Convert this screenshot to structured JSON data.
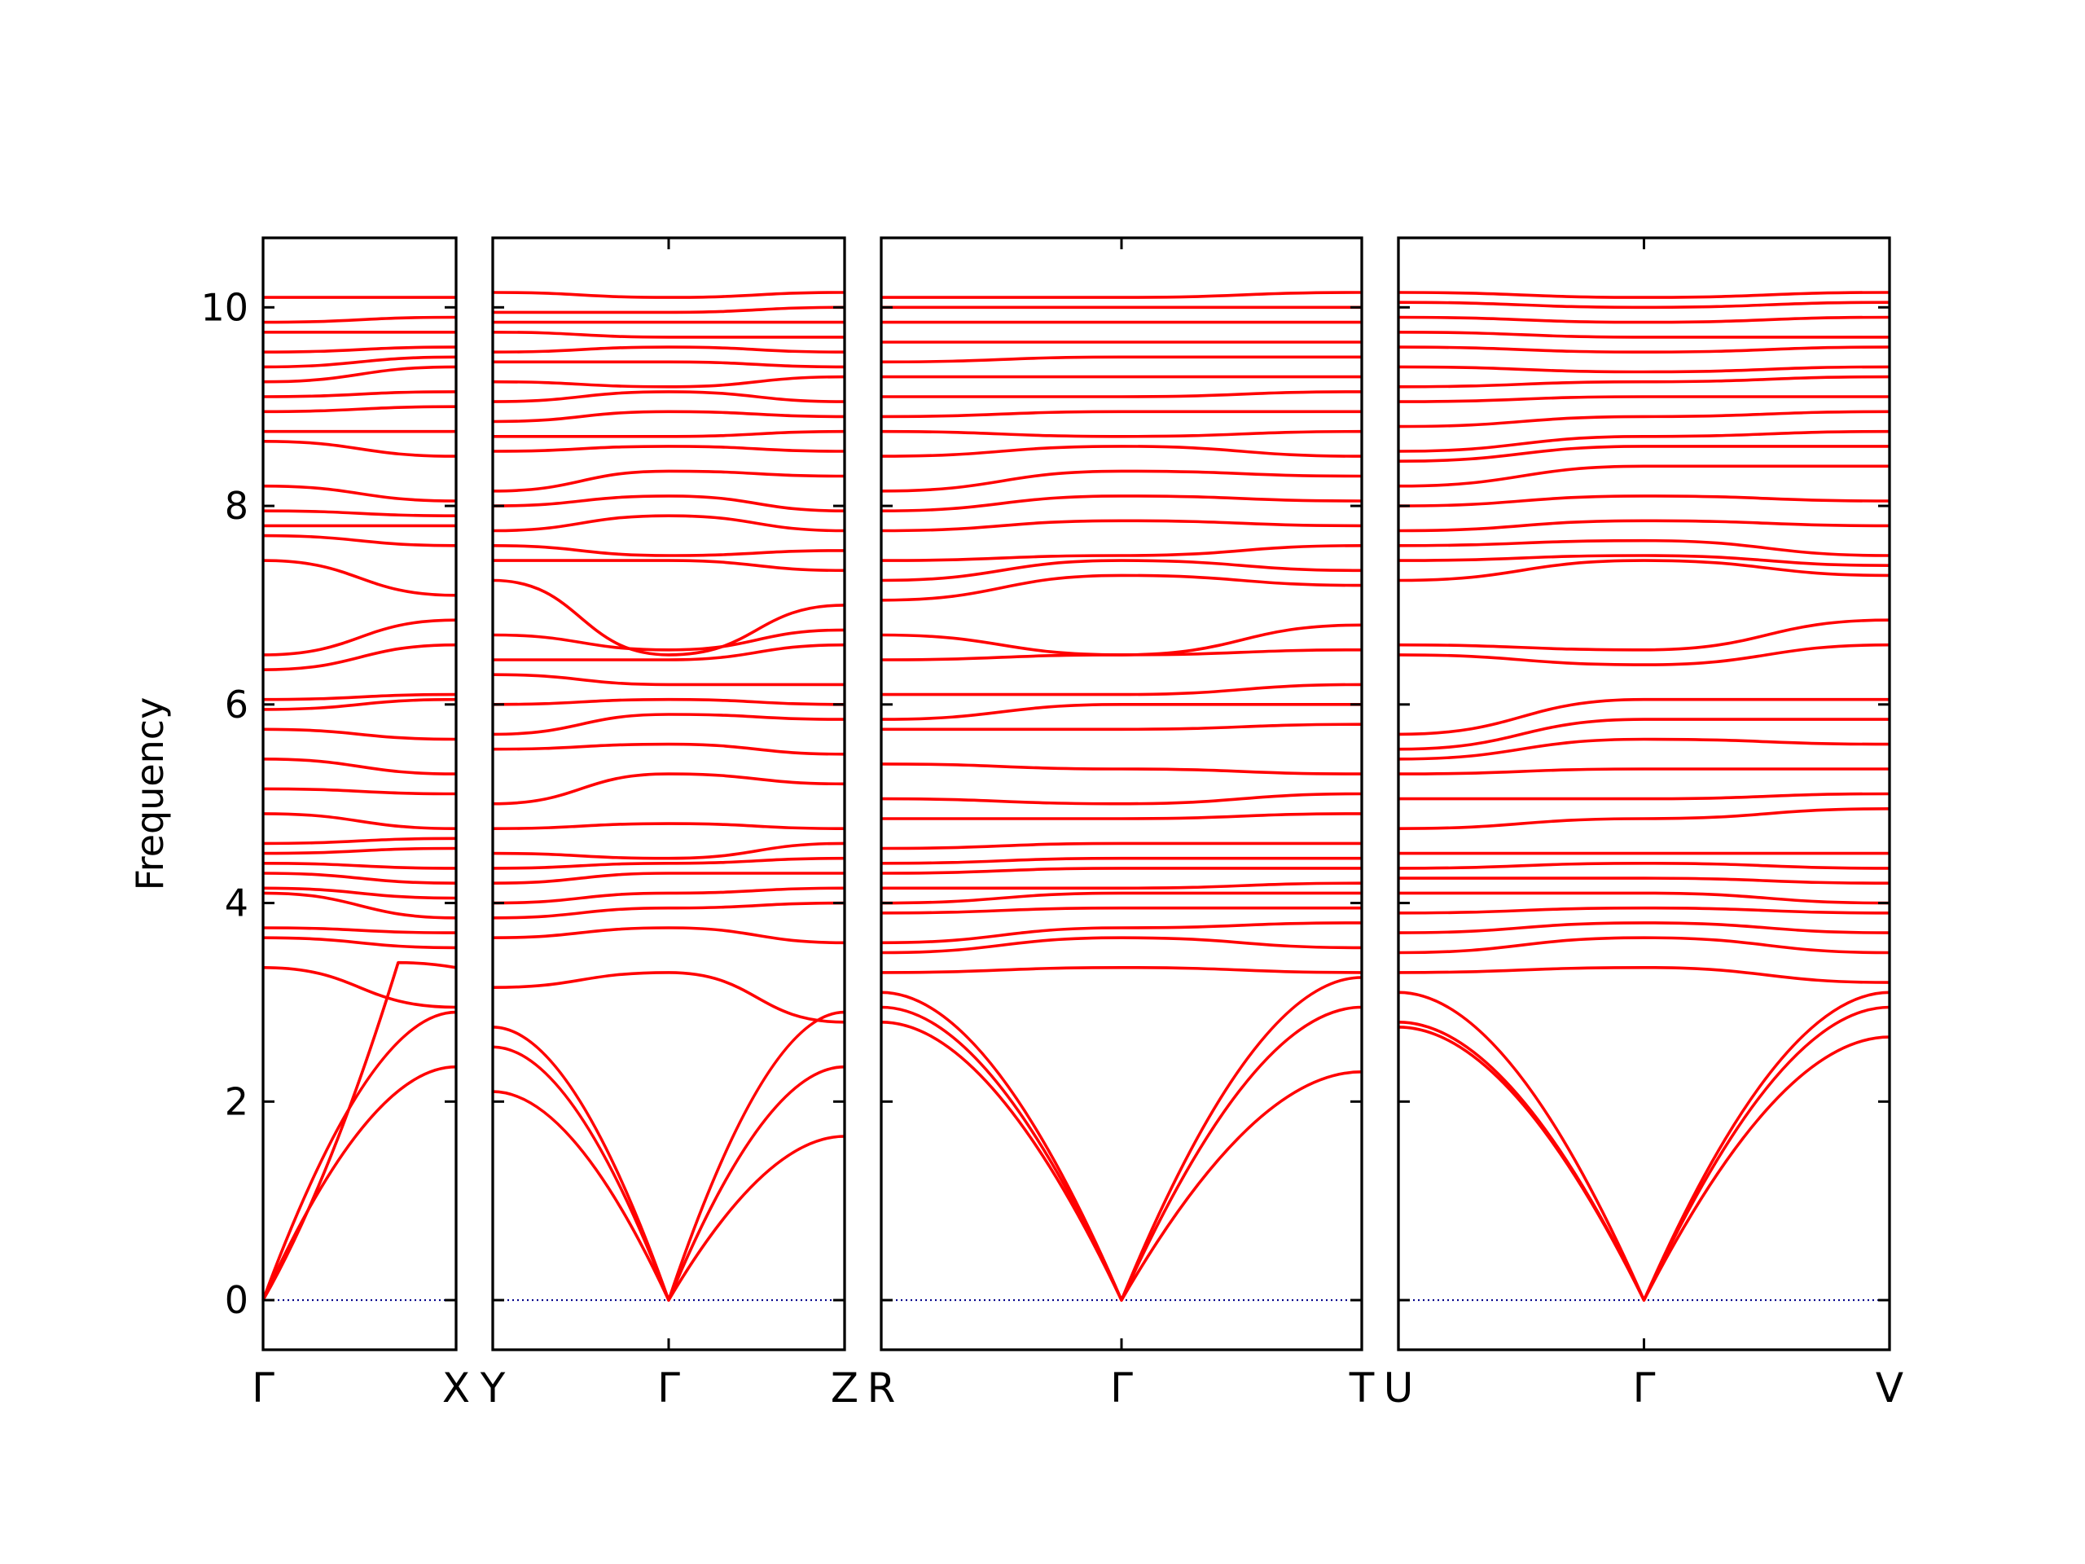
{
  "chart_data": {
    "type": "line",
    "title": "",
    "ylabel": "Frequency",
    "ylim": [
      -0.5,
      10.7
    ],
    "yticks": [
      "0",
      "2",
      "4",
      "6",
      "8",
      "10"
    ],
    "grid": false,
    "band_color": "#ff0000",
    "zero_line_color": "#00008b",
    "panels": [
      {
        "labels": [
          "Γ",
          "X"
        ],
        "x": [
          0,
          1
        ],
        "series": [
          {
            "values": [
              0.0,
              2.35
            ]
          },
          {
            "values": [
              0.0,
              2.9
            ]
          },
          {
            "values": [
              0.0,
              3.35
            ],
            "peak": [
              0.7,
              3.4
            ]
          },
          {
            "values": [
              3.35,
              2.95
            ]
          },
          {
            "values": [
              3.65,
              3.55
            ]
          },
          {
            "values": [
              3.75,
              3.7
            ]
          },
          {
            "values": [
              4.1,
              3.85
            ]
          },
          {
            "values": [
              4.15,
              4.05
            ]
          },
          {
            "values": [
              4.3,
              4.2
            ]
          },
          {
            "values": [
              4.4,
              4.35
            ]
          },
          {
            "values": [
              4.5,
              4.55
            ]
          },
          {
            "values": [
              4.6,
              4.65
            ]
          },
          {
            "values": [
              4.9,
              4.75
            ]
          },
          {
            "values": [
              5.15,
              5.1
            ]
          },
          {
            "values": [
              5.45,
              5.3
            ]
          },
          {
            "values": [
              5.75,
              5.65
            ]
          },
          {
            "values": [
              5.95,
              6.05
            ]
          },
          {
            "values": [
              6.05,
              6.1
            ]
          },
          {
            "values": [
              6.35,
              6.6
            ]
          },
          {
            "values": [
              6.5,
              6.85
            ]
          },
          {
            "values": [
              7.45,
              7.1
            ]
          },
          {
            "values": [
              7.7,
              7.6
            ]
          },
          {
            "values": [
              7.8,
              7.8
            ]
          },
          {
            "values": [
              7.95,
              7.9
            ]
          },
          {
            "values": [
              8.2,
              8.05
            ]
          },
          {
            "values": [
              8.65,
              8.5
            ]
          },
          {
            "values": [
              8.75,
              8.75
            ]
          },
          {
            "values": [
              8.95,
              9.0
            ]
          },
          {
            "values": [
              9.1,
              9.15
            ]
          },
          {
            "values": [
              9.25,
              9.4
            ]
          },
          {
            "values": [
              9.4,
              9.5
            ]
          },
          {
            "values": [
              9.55,
              9.6
            ]
          },
          {
            "values": [
              9.75,
              9.75
            ]
          },
          {
            "values": [
              9.85,
              9.9
            ]
          },
          {
            "values": [
              10.1,
              10.1
            ]
          }
        ]
      },
      {
        "labels": [
          "Y",
          "Γ",
          "Z"
        ],
        "x": [
          0,
          1,
          2
        ],
        "series": [
          {
            "values": [
              2.1,
              0.0,
              1.65
            ]
          },
          {
            "values": [
              2.55,
              0.0,
              2.35
            ]
          },
          {
            "values": [
              2.75,
              0.0,
              2.9
            ]
          },
          {
            "values": [
              3.15,
              3.3,
              2.8
            ]
          },
          {
            "values": [
              3.65,
              3.75,
              3.6
            ]
          },
          {
            "values": [
              3.85,
              3.95,
              4.0
            ]
          },
          {
            "values": [
              4.0,
              4.1,
              4.15
            ]
          },
          {
            "values": [
              4.2,
              4.3,
              4.3
            ]
          },
          {
            "values": [
              4.35,
              4.4,
              4.45
            ]
          },
          {
            "values": [
              4.5,
              4.45,
              4.6
            ]
          },
          {
            "values": [
              4.75,
              4.8,
              4.75
            ]
          },
          {
            "values": [
              5.0,
              5.3,
              5.2
            ]
          },
          {
            "values": [
              5.55,
              5.6,
              5.5
            ]
          },
          {
            "values": [
              5.7,
              5.9,
              5.85
            ]
          },
          {
            "values": [
              6.0,
              6.05,
              6.0
            ]
          },
          {
            "values": [
              6.3,
              6.2,
              6.2
            ]
          },
          {
            "values": [
              6.45,
              6.45,
              6.6
            ]
          },
          {
            "values": [
              6.7,
              6.55,
              6.75
            ]
          },
          {
            "values": [
              7.25,
              6.5,
              7.0
            ]
          },
          {
            "values": [
              7.45,
              7.45,
              7.35
            ]
          },
          {
            "values": [
              7.6,
              7.5,
              7.55
            ]
          },
          {
            "values": [
              7.75,
              7.9,
              7.75
            ]
          },
          {
            "values": [
              8.0,
              8.1,
              7.95
            ]
          },
          {
            "values": [
              8.15,
              8.35,
              8.3
            ]
          },
          {
            "values": [
              8.55,
              8.6,
              8.55
            ]
          },
          {
            "values": [
              8.7,
              8.7,
              8.75
            ]
          },
          {
            "values": [
              8.85,
              8.95,
              8.9
            ]
          },
          {
            "values": [
              9.05,
              9.15,
              9.05
            ]
          },
          {
            "values": [
              9.25,
              9.2,
              9.3
            ]
          },
          {
            "values": [
              9.45,
              9.45,
              9.4
            ]
          },
          {
            "values": [
              9.55,
              9.6,
              9.55
            ]
          },
          {
            "values": [
              9.75,
              9.7,
              9.7
            ]
          },
          {
            "values": [
              9.85,
              9.85,
              9.85
            ]
          },
          {
            "values": [
              9.95,
              9.95,
              10.0
            ]
          },
          {
            "values": [
              10.15,
              10.1,
              10.15
            ]
          }
        ]
      },
      {
        "labels": [
          "R",
          "Γ",
          "T"
        ],
        "x": [
          0,
          1,
          2
        ],
        "series": [
          {
            "values": [
              2.8,
              0.0,
              2.3
            ]
          },
          {
            "values": [
              2.95,
              0.0,
              2.95
            ]
          },
          {
            "values": [
              3.1,
              0.0,
              3.25
            ]
          },
          {
            "values": [
              3.3,
              3.35,
              3.3
            ]
          },
          {
            "values": [
              3.5,
              3.65,
              3.55
            ]
          },
          {
            "values": [
              3.6,
              3.75,
              3.8
            ]
          },
          {
            "values": [
              3.9,
              3.95,
              3.95
            ]
          },
          {
            "values": [
              4.0,
              4.1,
              4.1
            ]
          },
          {
            "values": [
              4.15,
              4.15,
              4.2
            ]
          },
          {
            "values": [
              4.3,
              4.35,
              4.35
            ]
          },
          {
            "values": [
              4.4,
              4.45,
              4.45
            ]
          },
          {
            "values": [
              4.55,
              4.6,
              4.6
            ]
          },
          {
            "values": [
              4.85,
              4.85,
              4.9
            ]
          },
          {
            "values": [
              5.05,
              5.0,
              5.1
            ]
          },
          {
            "values": [
              5.4,
              5.35,
              5.3
            ]
          },
          {
            "values": [
              5.75,
              5.75,
              5.8
            ]
          },
          {
            "values": [
              5.85,
              6.0,
              6.0
            ]
          },
          {
            "values": [
              6.1,
              6.1,
              6.2
            ]
          },
          {
            "values": [
              6.45,
              6.5,
              6.55
            ]
          },
          {
            "values": [
              6.7,
              6.5,
              6.8
            ]
          },
          {
            "values": [
              7.05,
              7.3,
              7.2
            ]
          },
          {
            "values": [
              7.25,
              7.45,
              7.35
            ]
          },
          {
            "values": [
              7.45,
              7.5,
              7.6
            ]
          },
          {
            "values": [
              7.75,
              7.85,
              7.8
            ]
          },
          {
            "values": [
              7.95,
              8.1,
              8.05
            ]
          },
          {
            "values": [
              8.15,
              8.35,
              8.3
            ]
          },
          {
            "values": [
              8.5,
              8.6,
              8.5
            ]
          },
          {
            "values": [
              8.75,
              8.7,
              8.75
            ]
          },
          {
            "values": [
              8.9,
              8.95,
              8.95
            ]
          },
          {
            "values": [
              9.1,
              9.1,
              9.15
            ]
          },
          {
            "values": [
              9.3,
              9.3,
              9.3
            ]
          },
          {
            "values": [
              9.45,
              9.5,
              9.5
            ]
          },
          {
            "values": [
              9.65,
              9.65,
              9.65
            ]
          },
          {
            "values": [
              9.85,
              9.85,
              9.85
            ]
          },
          {
            "values": [
              10.0,
              10.0,
              10.0
            ]
          },
          {
            "values": [
              10.1,
              10.1,
              10.15
            ]
          }
        ]
      },
      {
        "labels": [
          "U",
          "Γ",
          "V"
        ],
        "x": [
          0,
          1,
          2
        ],
        "series": [
          {
            "values": [
              2.75,
              0.0,
              2.65
            ]
          },
          {
            "values": [
              2.8,
              0.0,
              2.95
            ]
          },
          {
            "values": [
              3.1,
              0.0,
              3.1
            ]
          },
          {
            "values": [
              3.3,
              3.35,
              3.2
            ]
          },
          {
            "values": [
              3.5,
              3.65,
              3.5
            ]
          },
          {
            "values": [
              3.7,
              3.8,
              3.7
            ]
          },
          {
            "values": [
              3.9,
              3.95,
              3.9
            ]
          },
          {
            "values": [
              4.1,
              4.1,
              4.0
            ]
          },
          {
            "values": [
              4.25,
              4.25,
              4.2
            ]
          },
          {
            "values": [
              4.35,
              4.4,
              4.35
            ]
          },
          {
            "values": [
              4.5,
              4.5,
              4.5
            ]
          },
          {
            "values": [
              4.75,
              4.85,
              4.95
            ]
          },
          {
            "values": [
              5.05,
              5.05,
              5.1
            ]
          },
          {
            "values": [
              5.3,
              5.35,
              5.35
            ]
          },
          {
            "values": [
              5.45,
              5.65,
              5.6
            ]
          },
          {
            "values": [
              5.55,
              5.85,
              5.85
            ]
          },
          {
            "values": [
              5.7,
              6.05,
              6.05
            ]
          },
          {
            "values": [
              6.5,
              6.4,
              6.6
            ]
          },
          {
            "values": [
              6.6,
              6.55,
              6.85
            ]
          },
          {
            "values": [
              7.25,
              7.45,
              7.3
            ]
          },
          {
            "values": [
              7.45,
              7.5,
              7.4
            ]
          },
          {
            "values": [
              7.6,
              7.65,
              7.5
            ]
          },
          {
            "values": [
              7.75,
              7.85,
              7.8
            ]
          },
          {
            "values": [
              8.0,
              8.1,
              8.05
            ]
          },
          {
            "values": [
              8.2,
              8.4,
              8.4
            ]
          },
          {
            "values": [
              8.45,
              8.6,
              8.6
            ]
          },
          {
            "values": [
              8.55,
              8.7,
              8.75
            ]
          },
          {
            "values": [
              8.8,
              8.9,
              8.95
            ]
          },
          {
            "values": [
              9.05,
              9.1,
              9.1
            ]
          },
          {
            "values": [
              9.2,
              9.25,
              9.3
            ]
          },
          {
            "values": [
              9.4,
              9.35,
              9.4
            ]
          },
          {
            "values": [
              9.6,
              9.55,
              9.6
            ]
          },
          {
            "values": [
              9.75,
              9.7,
              9.7
            ]
          },
          {
            "values": [
              9.9,
              9.85,
              9.9
            ]
          },
          {
            "values": [
              10.05,
              10.0,
              10.05
            ]
          },
          {
            "values": [
              10.15,
              10.1,
              10.15
            ]
          }
        ]
      }
    ]
  }
}
